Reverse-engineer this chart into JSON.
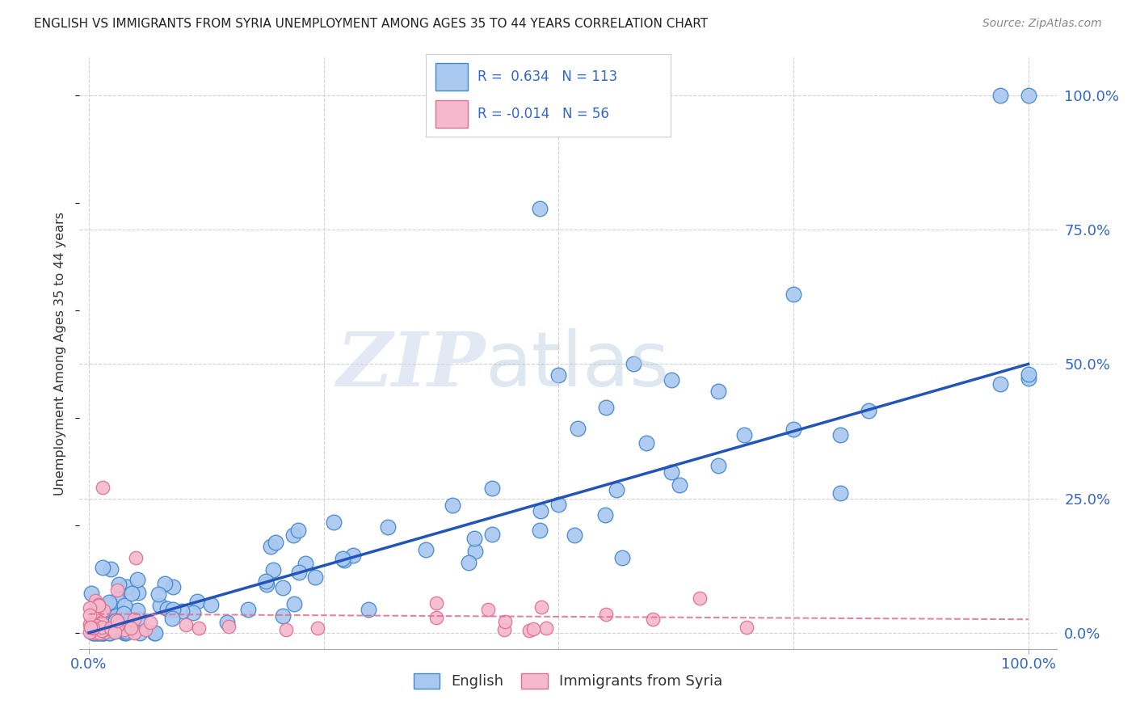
{
  "title": "ENGLISH VS IMMIGRANTS FROM SYRIA UNEMPLOYMENT AMONG AGES 35 TO 44 YEARS CORRELATION CHART",
  "source": "Source: ZipAtlas.com",
  "ylabel": "Unemployment Among Ages 35 to 44 years",
  "legend_english_R": "0.634",
  "legend_english_N": "113",
  "legend_syria_R": "-0.014",
  "legend_syria_N": "56",
  "legend_english_label": "English",
  "legend_syria_label": "Immigrants from Syria",
  "english_color": "#a8c8f0",
  "english_edge_color": "#4488cc",
  "syria_color": "#f5b8cc",
  "syria_edge_color": "#e07090",
  "english_line_color": "#2255bb",
  "syria_line_color": "#e07090",
  "background_color": "#ffffff",
  "grid_color": "#cccccc",
  "tick_color": "#3366cc",
  "title_color": "#222222",
  "source_color": "#888888",
  "ylabel_color": "#333333",
  "xlim": [
    0,
    100
  ],
  "ylim": [
    0,
    100
  ],
  "english_line_x0": 0,
  "english_line_y0": 0,
  "english_line_x1": 100,
  "english_line_y1": 50,
  "syria_line_x0": 0,
  "syria_line_y0": 3.5,
  "syria_line_x1": 100,
  "syria_line_y1": 2.5
}
